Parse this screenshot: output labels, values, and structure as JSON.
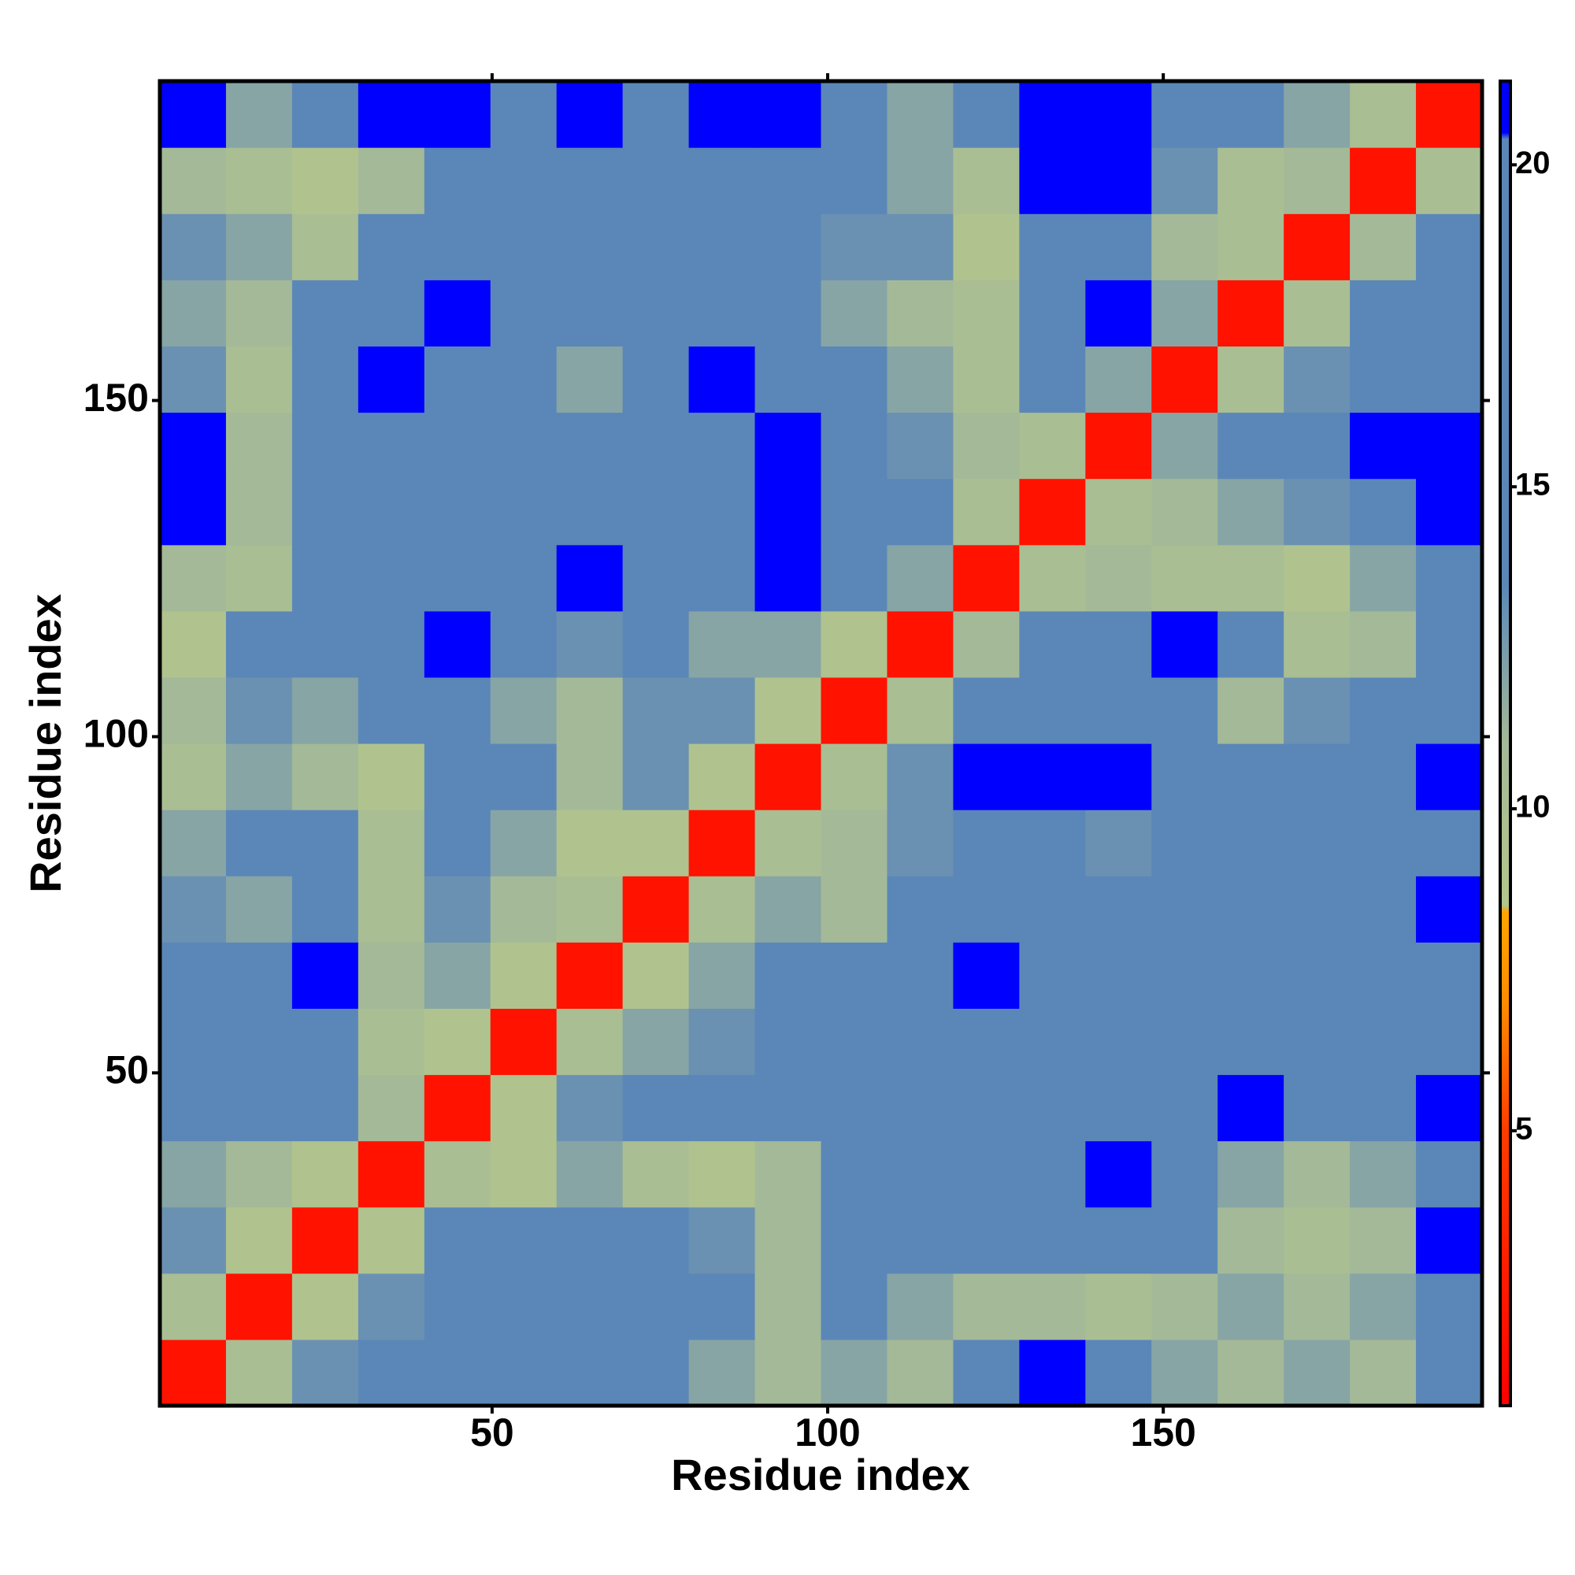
{
  "chart_data": {
    "type": "heatmap",
    "xlabel": "Residue index",
    "ylabel": "Residue index",
    "xlim": [
      0.5,
      197.5
    ],
    "ylim": [
      0.5,
      197.5
    ],
    "xticks": [
      50,
      100,
      150
    ],
    "yticks": [
      50,
      100,
      150
    ],
    "z": [
      [
        2,
        10,
        13,
        16,
        17,
        17,
        17,
        14,
        12,
        11,
        12,
        11,
        19,
        20.8,
        19,
        12,
        11,
        12,
        11,
        17
      ],
      [
        10,
        2,
        9,
        13,
        16,
        17,
        17,
        15,
        14,
        11,
        17,
        12,
        11,
        11,
        10,
        11,
        12,
        11,
        12,
        16
      ],
      [
        13,
        9,
        2,
        9,
        15,
        17,
        17,
        17,
        13,
        11,
        17,
        17,
        17,
        17,
        17,
        16,
        11,
        10,
        11,
        20.8
      ],
      [
        12,
        11,
        9,
        2,
        10,
        9,
        12,
        10,
        9,
        11,
        14,
        17,
        17,
        17,
        20.8,
        17,
        12,
        11,
        12,
        17
      ],
      [
        14,
        17,
        17,
        11,
        2,
        9,
        13,
        14,
        15,
        17,
        17,
        17,
        17,
        17,
        17,
        17,
        20.8,
        17,
        17,
        20.8
      ],
      [
        15,
        17,
        17,
        10,
        9,
        2,
        10,
        12,
        13,
        17,
        17,
        17,
        17,
        17,
        17,
        17,
        17,
        17,
        17,
        17
      ],
      [
        17,
        17,
        20.8,
        11,
        12,
        9,
        2,
        9,
        12,
        14,
        17,
        17,
        20.8,
        17,
        17,
        17,
        17,
        17,
        17,
        17
      ],
      [
        13,
        12,
        16,
        10,
        13,
        11,
        10,
        2,
        10,
        12,
        11,
        14,
        17,
        17,
        15,
        17,
        17,
        17,
        17,
        20.8
      ],
      [
        12,
        14,
        15,
        10,
        14,
        12,
        9,
        9,
        2,
        10,
        11,
        13,
        17,
        15,
        13,
        15,
        17,
        17,
        17,
        17
      ],
      [
        10,
        12,
        11,
        9,
        14,
        14,
        11,
        13,
        9,
        2,
        10,
        13,
        20.8,
        20.8,
        20.8,
        17,
        17,
        17,
        14,
        20.8
      ],
      [
        11,
        13,
        12,
        14,
        16,
        12,
        11,
        13,
        13,
        9,
        2,
        10,
        17,
        17,
        17,
        14,
        11,
        13,
        15,
        17
      ],
      [
        9,
        14,
        15,
        14,
        20.8,
        15,
        13,
        14,
        12,
        12,
        9,
        2,
        11,
        17,
        17,
        20.8,
        15,
        10,
        11,
        15
      ],
      [
        11,
        10,
        14,
        17,
        17,
        17,
        20.8,
        17,
        16,
        20.8,
        14,
        12,
        2,
        10,
        11,
        10,
        10,
        9,
        12,
        17
      ],
      [
        20.8,
        11,
        14,
        17,
        17,
        17,
        17,
        17,
        17,
        20.8,
        17,
        14,
        10,
        2,
        10,
        11,
        12,
        13,
        16,
        20.8
      ],
      [
        20.8,
        11,
        15,
        17,
        17,
        17,
        15,
        17,
        17,
        20.8,
        17,
        13,
        11,
        10,
        2,
        12,
        15,
        16,
        20.8,
        20.8
      ],
      [
        13,
        10,
        14,
        20.8,
        17,
        17,
        12,
        17,
        20.8,
        17,
        15,
        12,
        10,
        14,
        12,
        2,
        10,
        13,
        17,
        17
      ],
      [
        12,
        11,
        15,
        17,
        20.8,
        17,
        14,
        17,
        17,
        14,
        12,
        11,
        10,
        17,
        20.8,
        12,
        2,
        10,
        14,
        17
      ],
      [
        13,
        12,
        10,
        14,
        17,
        17,
        17,
        17,
        17,
        15,
        13,
        13,
        9,
        14,
        17,
        11,
        10,
        2,
        11,
        14
      ],
      [
        11,
        10,
        9,
        11,
        17,
        17,
        17,
        17,
        14,
        17,
        17,
        12,
        10,
        20.8,
        20.8,
        13,
        10,
        11,
        2,
        10
      ],
      [
        20.8,
        12,
        14,
        20.8,
        20.8,
        17,
        20.8,
        17,
        20.8,
        20.8,
        14,
        12,
        17,
        20.8,
        20.8,
        17,
        14,
        12,
        10,
        2
      ]
    ],
    "colorbar": {
      "lim": [
        0.73,
        21.3
      ],
      "ticks": [
        5,
        10,
        15,
        20
      ],
      "colorscale": [
        [
          0.73,
          "#ff0000"
        ],
        [
          5,
          "#ff3c00"
        ],
        [
          7,
          "#ff8c00"
        ],
        [
          8.4,
          "#ffa500"
        ],
        [
          8.5,
          "#b3c68c"
        ],
        [
          11,
          "#a4b998"
        ],
        [
          13.5,
          "#5b87b8"
        ],
        [
          20.4,
          "#5b87b8"
        ],
        [
          20.5,
          "#0000ff"
        ],
        [
          21.3,
          "#0000ff"
        ]
      ]
    }
  }
}
